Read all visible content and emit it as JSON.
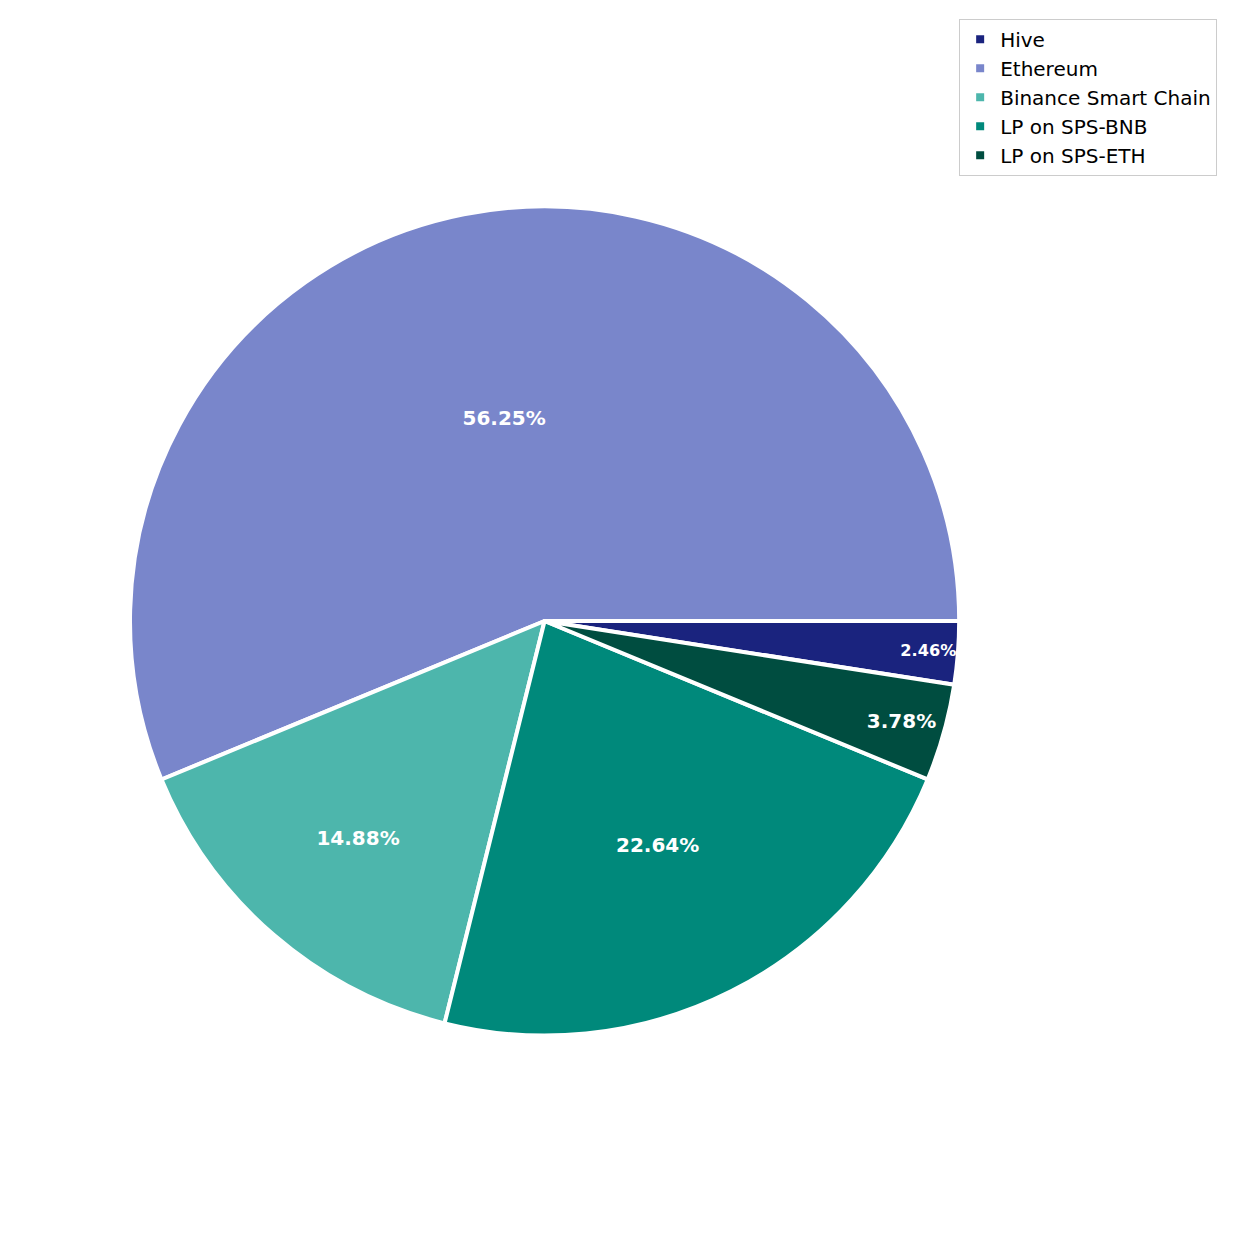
{
  "chart_data": {
    "type": "pie",
    "categories": [
      "Hive",
      "Ethereum",
      "Binance Smart Chain",
      "LP on SPS-BNB",
      "LP on SPS-ETH"
    ],
    "values": [
      2.46,
      56.25,
      14.88,
      22.64,
      3.78
    ],
    "value_labels": [
      "2.46%",
      "56.25%",
      "14.88%",
      "22.64%",
      "3.78%"
    ],
    "colors": [
      "#1a237e",
      "#7986cb",
      "#4db6ac",
      "#00897b",
      "#004d40"
    ],
    "data_labels": true,
    "legend": "upper right"
  }
}
